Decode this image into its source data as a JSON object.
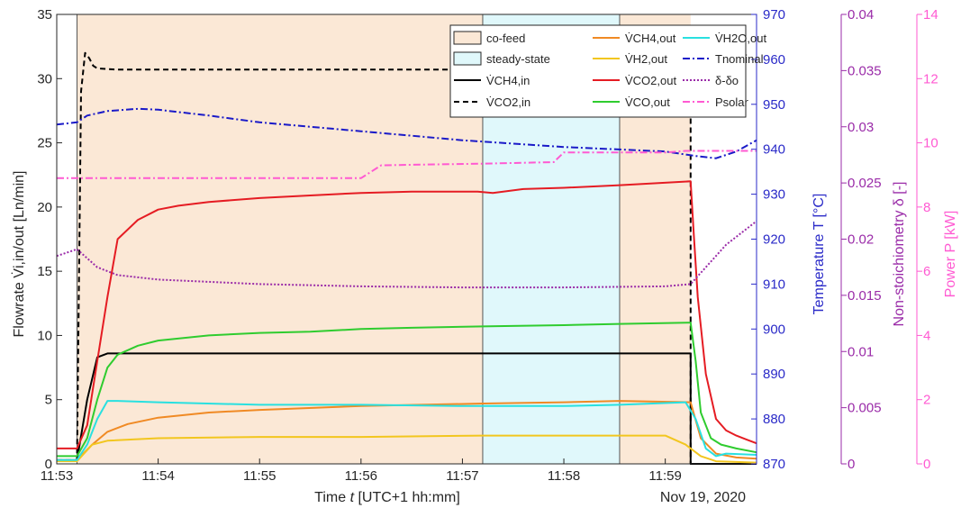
{
  "chart_data": {
    "type": "line",
    "date_label": "Nov 19, 2020",
    "x_axis": {
      "label_parts": [
        "Time ",
        "t",
        " [UTC+1 hh:mm]"
      ],
      "tick_values": [
        0,
        1,
        2,
        3,
        4,
        5,
        6
      ],
      "tick_labels": [
        "11:53",
        "11:54",
        "11:55",
        "11:56",
        "11:57",
        "11:58",
        "11:59"
      ],
      "range": [
        0,
        6.9
      ],
      "unit": "minutes after 11:53"
    },
    "left_axis": {
      "label": "Flowrate V̇i,in/out [Ln/min]",
      "ticks": [
        0,
        5,
        10,
        15,
        20,
        25,
        30,
        35
      ],
      "range": [
        0,
        35
      ],
      "color": "#000000"
    },
    "temperature_axis": {
      "label": "Temperature T [°C]",
      "ticks": [
        870,
        880,
        890,
        900,
        910,
        920,
        930,
        940,
        950,
        960,
        970
      ],
      "range": [
        870,
        970
      ],
      "color": "#2a2ac8"
    },
    "nonstoich_axis": {
      "label": "Non-stoichiometry δ [-]",
      "ticks": [
        "0",
        "0.005",
        "0.01",
        "0.015",
        "0.02",
        "0.025",
        "0.03",
        "0.035",
        "0.04"
      ],
      "range": [
        0,
        0.04
      ],
      "color": "#9a2ba8"
    },
    "power_axis": {
      "label": "Power P [kW]",
      "ticks": [
        0,
        2,
        4,
        6,
        8,
        10,
        12,
        14
      ],
      "range": [
        0,
        14
      ],
      "color": "#ff5ad2"
    },
    "regions": [
      {
        "name": "co-feed",
        "x": [
          0.2,
          4.2
        ],
        "color": "#fbe8d6"
      },
      {
        "name": "steady-state",
        "x": [
          4.2,
          5.55
        ],
        "color": "#e0f8fb"
      },
      {
        "name": "co-feed",
        "x": [
          5.55,
          6.25
        ],
        "color": "#fbe8d6"
      }
    ],
    "vlines": [
      0.2,
      4.2,
      5.55
    ],
    "legend": {
      "placement": "top-right",
      "entries": [
        {
          "label": "co-feed",
          "kind": "patch",
          "color": "#fbe8d6"
        },
        {
          "label": "steady-state",
          "kind": "patch",
          "color": "#e0f8fb"
        },
        {
          "label": "V̇CH4,in",
          "kind": "line",
          "color": "#000000",
          "dash": ""
        },
        {
          "label": "V̇CO2,in",
          "kind": "line",
          "color": "#000000",
          "dash": "6 4"
        },
        {
          "label": "V̇CH4,out",
          "kind": "line",
          "color": "#f08a24",
          "dash": ""
        },
        {
          "label": "V̇H2,out",
          "kind": "line",
          "color": "#f2c61f",
          "dash": ""
        },
        {
          "label": "V̇CO2,out",
          "kind": "line",
          "color": "#e51c23",
          "dash": ""
        },
        {
          "label": "V̇CO,out",
          "kind": "line",
          "color": "#2fcc2f",
          "dash": ""
        },
        {
          "label": "V̇H2O,out",
          "kind": "line",
          "color": "#29e0e0",
          "dash": ""
        },
        {
          "label": "Tnominal",
          "kind": "line",
          "color": "#1a1ac8",
          "dash": "8 3 2 3"
        },
        {
          "label": "δ-δo",
          "kind": "line",
          "color": "#9a2ba8",
          "dash": "2 2"
        },
        {
          "label": "Psolar",
          "kind": "line",
          "color": "#ff5ad2",
          "dash": "8 3 2 3"
        }
      ]
    },
    "series": [
      {
        "name": "V̇CH4,in",
        "axis": "left",
        "color": "#000000",
        "dash": "",
        "width": 2,
        "x": [
          0,
          0.2,
          0.3,
          0.4,
          0.5,
          6.25,
          6.25,
          6.9
        ],
        "y": [
          0.3,
          0.3,
          5,
          8.3,
          8.6,
          8.6,
          0,
          0
        ]
      },
      {
        "name": "V̇CO2,in",
        "axis": "left",
        "color": "#000000",
        "dash": "6 4",
        "width": 2,
        "x": [
          0,
          0.2,
          0.24,
          0.28,
          0.32,
          0.36,
          0.4,
          0.6,
          2,
          4.2,
          5.5,
          6.25,
          6.25,
          6.9
        ],
        "y": [
          0.3,
          0.3,
          29,
          32,
          31.6,
          31,
          30.8,
          30.7,
          30.7,
          30.7,
          30.7,
          30.7,
          0,
          0
        ]
      },
      {
        "name": "V̇CH4,out",
        "axis": "left",
        "color": "#f08a24",
        "dash": "",
        "width": 2,
        "x": [
          0,
          0.2,
          0.35,
          0.5,
          0.7,
          1,
          1.5,
          2,
          3,
          4.2,
          5,
          5.55,
          6.25,
          6.35,
          6.5,
          6.7,
          6.9
        ],
        "y": [
          0.3,
          0.3,
          1.5,
          2.5,
          3.1,
          3.6,
          4,
          4.2,
          4.5,
          4.7,
          4.8,
          4.9,
          4.8,
          2,
          0.8,
          0.5,
          0.4
        ]
      },
      {
        "name": "V̇H2,out",
        "axis": "left",
        "color": "#f2c61f",
        "dash": "",
        "width": 2,
        "x": [
          0,
          0.2,
          0.35,
          0.5,
          1,
          2,
          3,
          4.2,
          5,
          6,
          6.2,
          6.35,
          6.5,
          6.9
        ],
        "y": [
          0.2,
          0.2,
          1.5,
          1.8,
          2,
          2.1,
          2.1,
          2.2,
          2.2,
          2.2,
          1.5,
          0.6,
          0.2,
          0.1
        ]
      },
      {
        "name": "V̇CO2,out",
        "axis": "left",
        "color": "#e51c23",
        "dash": "",
        "width": 2,
        "x": [
          0,
          0.2,
          0.3,
          0.4,
          0.5,
          0.6,
          0.8,
          1,
          1.2,
          1.5,
          2,
          2.5,
          3,
          3.5,
          4.15,
          4.3,
          4.6,
          5,
          5.55,
          6.25,
          6.28,
          6.32,
          6.4,
          6.5,
          6.6,
          6.7,
          6.8,
          6.9
        ],
        "y": [
          1.2,
          1.2,
          3,
          8,
          13,
          17.5,
          19,
          19.8,
          20.1,
          20.4,
          20.7,
          20.9,
          21.1,
          21.2,
          21.2,
          21.1,
          21.4,
          21.5,
          21.7,
          22,
          18,
          13,
          7,
          3.5,
          2.6,
          2.2,
          1.9,
          1.6
        ]
      },
      {
        "name": "V̇CO,out",
        "axis": "left",
        "color": "#2fcc2f",
        "dash": "",
        "width": 2,
        "x": [
          0,
          0.2,
          0.3,
          0.4,
          0.5,
          0.6,
          0.8,
          1,
          1.5,
          2,
          2.5,
          3,
          3.5,
          4.2,
          5,
          5.55,
          6.25,
          6.3,
          6.35,
          6.45,
          6.55,
          6.7,
          6.9
        ],
        "y": [
          0.6,
          0.6,
          2,
          5,
          7.5,
          8.5,
          9.2,
          9.6,
          10,
          10.2,
          10.3,
          10.5,
          10.6,
          10.7,
          10.8,
          10.9,
          11,
          8,
          4,
          2,
          1.5,
          1.2,
          0.9
        ]
      },
      {
        "name": "V̇H2O,out",
        "axis": "left",
        "color": "#29e0e0",
        "dash": "",
        "width": 2,
        "x": [
          0,
          0.2,
          0.3,
          0.4,
          0.5,
          0.6,
          1,
          2,
          3,
          4,
          5,
          5.55,
          6.2,
          6.3,
          6.4,
          6.5,
          6.6,
          6.9
        ],
        "y": [
          0.3,
          0.3,
          1.5,
          3.5,
          4.9,
          4.9,
          4.8,
          4.6,
          4.6,
          4.5,
          4.5,
          4.6,
          4.8,
          3.5,
          1.2,
          0.6,
          0.8,
          0.7
        ]
      },
      {
        "name": "Tnominal",
        "axis": "temperature",
        "color": "#1a1ac8",
        "dash": "8 3 2 3",
        "width": 2,
        "x": [
          0,
          0.2,
          0.3,
          0.5,
          0.8,
          1,
          1.5,
          2,
          3,
          4,
          5,
          6,
          6.3,
          6.5,
          6.7,
          6.9
        ],
        "y": [
          945.5,
          946,
          947.5,
          948.5,
          949,
          948.8,
          947.5,
          946,
          944,
          942,
          940.5,
          939.5,
          938.5,
          938,
          939.5,
          942
        ]
      },
      {
        "name": "δ-δo",
        "axis": "nonstoich",
        "color": "#9a2ba8",
        "dash": "2 2",
        "width": 2,
        "x": [
          0,
          0.2,
          0.4,
          0.6,
          1,
          1.5,
          2,
          3,
          4,
          5,
          6,
          6.25,
          6.4,
          6.6,
          6.9
        ],
        "y": [
          0.0185,
          0.0191,
          0.0175,
          0.0168,
          0.0164,
          0.0162,
          0.016,
          0.0158,
          0.0157,
          0.0157,
          0.0158,
          0.016,
          0.0175,
          0.0195,
          0.0216
        ]
      },
      {
        "name": "Psolar",
        "axis": "power",
        "color": "#ff5ad2",
        "dash": "8 3 2 3",
        "width": 2,
        "x": [
          0,
          1.5,
          3,
          3.2,
          4.2,
          4.9,
          5,
          5.5,
          6,
          6.2,
          6.5,
          6.9
        ],
        "y": [
          8.9,
          8.9,
          8.9,
          9.3,
          9.35,
          9.4,
          9.7,
          9.7,
          9.7,
          9.75,
          9.75,
          9.75
        ]
      }
    ]
  }
}
